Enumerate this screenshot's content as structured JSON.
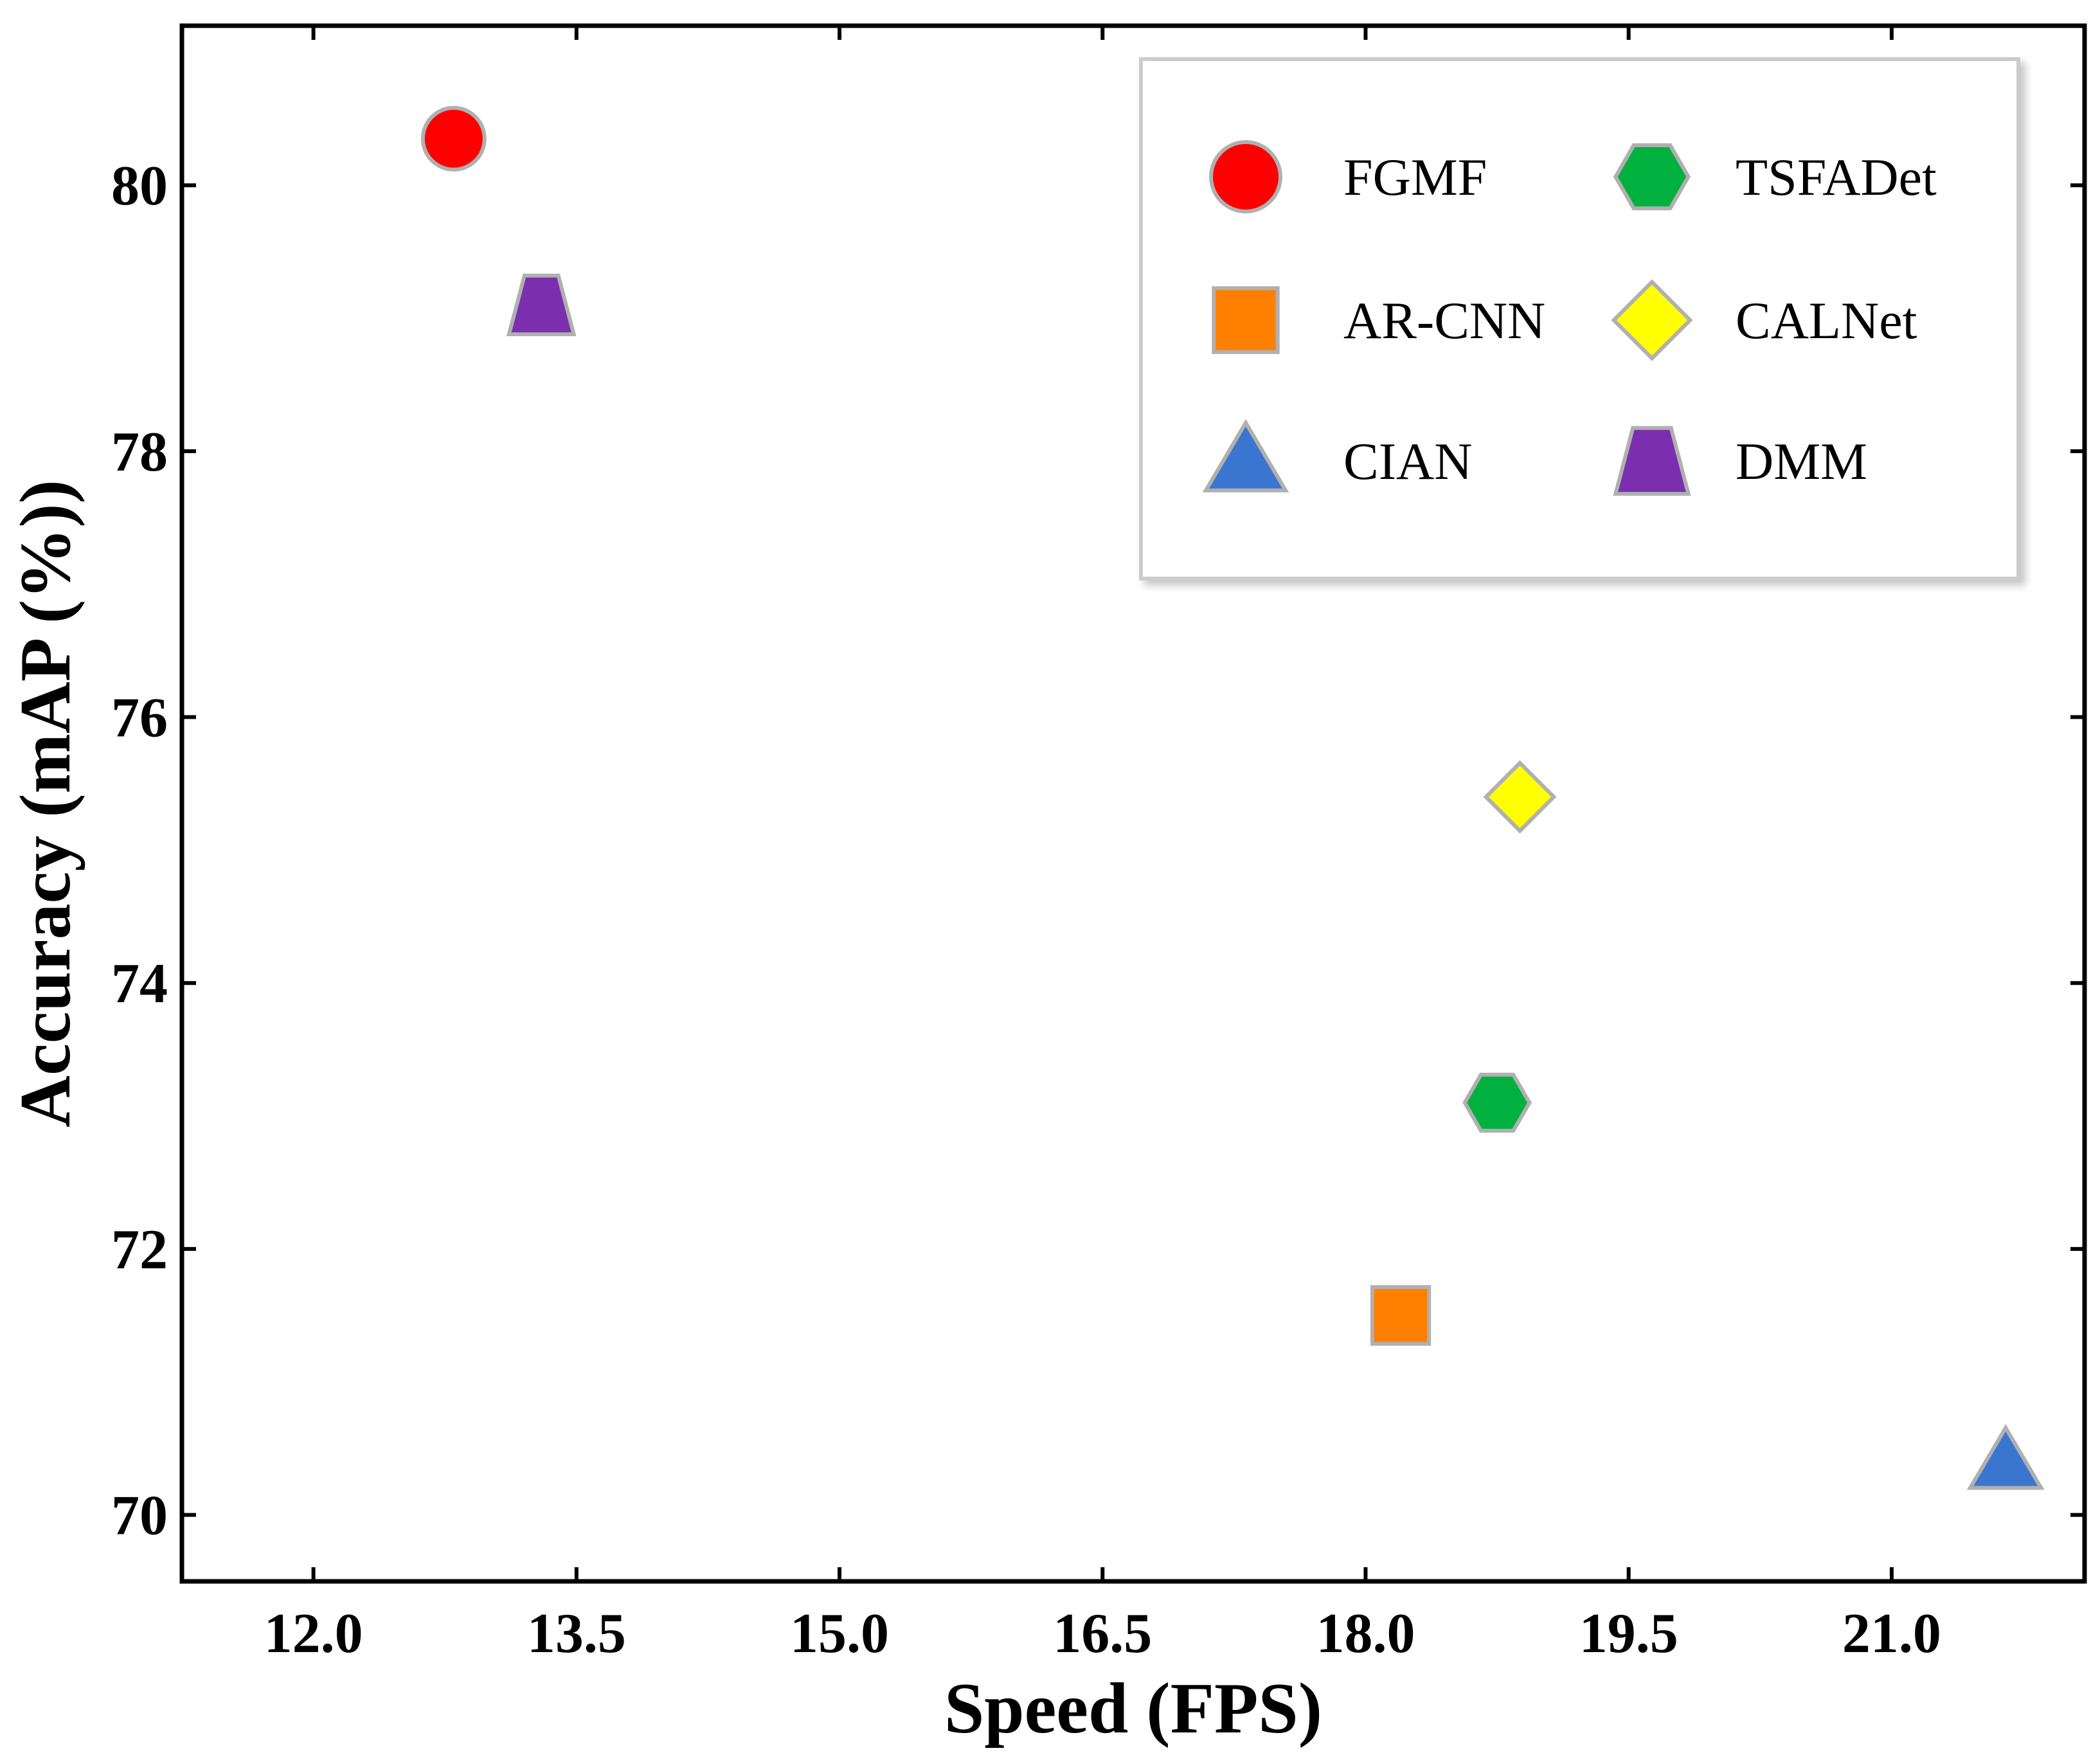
{
  "chart_data": {
    "type": "scatter",
    "title": "",
    "xlabel": "Speed (FPS)",
    "ylabel": "Accuracy (mAP (%))",
    "xlim": [
      11.25,
      22.1
    ],
    "ylim": [
      69.5,
      81.2
    ],
    "xticks": [
      12.0,
      13.5,
      15.0,
      16.5,
      18.0,
      19.5,
      21.0
    ],
    "xtick_labels": [
      "12.0",
      "13.5",
      "15.0",
      "16.5",
      "18.0",
      "19.5",
      "21.0"
    ],
    "yticks": [
      70,
      72,
      74,
      76,
      78,
      80
    ],
    "ytick_labels": [
      "70",
      "72",
      "74",
      "76",
      "78",
      "80"
    ],
    "grid": false,
    "legend_position": "top-right",
    "legend_columns": 2,
    "series": [
      {
        "name": "FGMF",
        "marker": "circle",
        "color": "#ff0000",
        "x": 12.8,
        "y": 80.35
      },
      {
        "name": "AR-CNN",
        "marker": "square",
        "color": "#ff7f00",
        "x": 18.2,
        "y": 71.5
      },
      {
        "name": "CIAN",
        "marker": "triangle",
        "color": "#3a76d0",
        "x": 21.65,
        "y": 70.4
      },
      {
        "name": "TSFADet",
        "marker": "hexagon",
        "color": "#00b140",
        "x": 18.75,
        "y": 73.1
      },
      {
        "name": "CALNet",
        "marker": "diamond",
        "color": "#ffff00",
        "x": 18.88,
        "y": 75.4
      },
      {
        "name": "DMM",
        "marker": "trapezoid",
        "color": "#7b2fae",
        "x": 13.3,
        "y": 79.1
      }
    ]
  }
}
